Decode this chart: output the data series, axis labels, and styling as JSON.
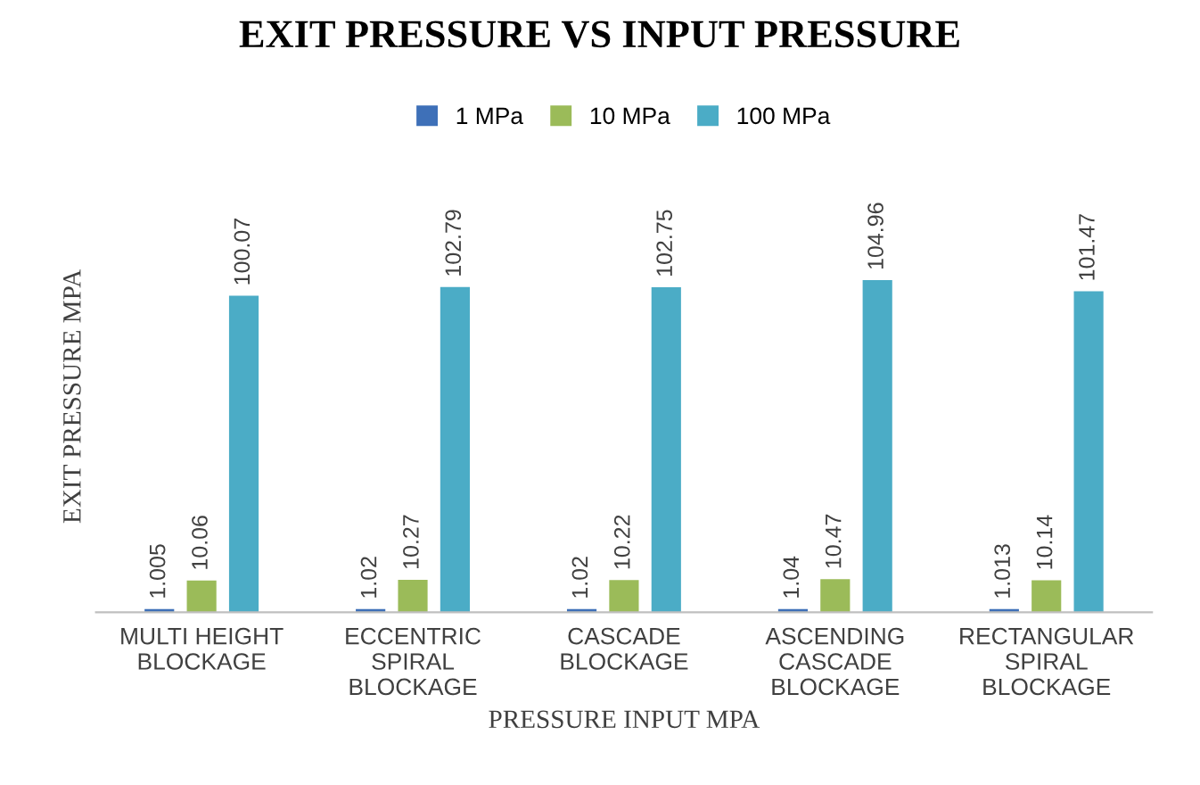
{
  "chart_data": {
    "type": "bar",
    "title": "EXIT PRESSURE VS INPUT PRESSURE",
    "xlabel": "PRESSURE INPUT MPA",
    "ylabel": "EXIT PRESSURE MPA",
    "categories": [
      "MULTI HEIGHT\nBLOCKAGE",
      "ECCENTRIC\nSPIRAL\nBLOCKAGE",
      "CASCADE\nBLOCKAGE",
      "ASCENDING\nCASCADE\nBLOCKAGE",
      "RECTANGULAR\nSPIRAL\nBLOCKAGE"
    ],
    "series": [
      {
        "name": "1 MPa",
        "color": "#3e70b8",
        "values": [
          1.005,
          1.02,
          1.02,
          1.04,
          1.013
        ]
      },
      {
        "name": "10 MPa",
        "color": "#9bbb59",
        "values": [
          10.06,
          10.27,
          10.22,
          10.47,
          10.14
        ]
      },
      {
        "name": "100 MPa",
        "color": "#4bacc6",
        "values": [
          100.07,
          102.79,
          102.75,
          104.96,
          101.47
        ]
      }
    ],
    "data_labels": true,
    "legend": "top",
    "grid": false
  }
}
